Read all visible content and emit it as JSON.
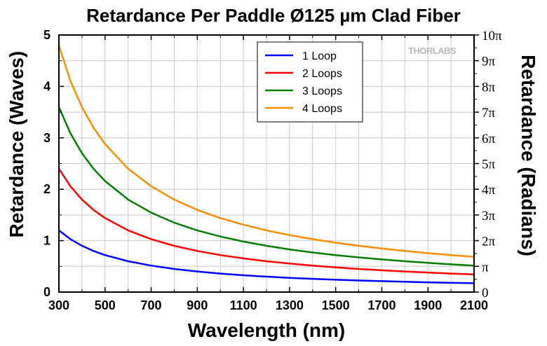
{
  "chart_data": {
    "type": "line",
    "title": "Retardance Per Paddle Ø125 µm Clad Fiber",
    "xlabel": "Wavelength (nm)",
    "ylabel": "Retardance (Waves)",
    "y2label": "Retardance (Radians)",
    "xlim": [
      300,
      2100
    ],
    "ylim": [
      0,
      5
    ],
    "x_ticks": [
      "300",
      "500",
      "700",
      "900",
      "1100",
      "1300",
      "1500",
      "1700",
      "1900",
      "2100"
    ],
    "y_ticks": [
      "0",
      "1",
      "2",
      "3",
      "4",
      "5"
    ],
    "y2_ticks": [
      "0",
      "π",
      "2π",
      "3π",
      "4π",
      "5π",
      "6π",
      "7π",
      "8π",
      "9π",
      "10π"
    ],
    "grid": true,
    "legend_position": "top-right",
    "x": [
      300,
      350,
      400,
      450,
      500,
      600,
      700,
      800,
      900,
      1000,
      1100,
      1200,
      1300,
      1400,
      1500,
      1600,
      1700,
      1800,
      1900,
      2000,
      2100
    ],
    "series": [
      {
        "name": "1 Loop",
        "color": "#0000ff",
        "values": [
          1.2,
          1.03,
          0.9,
          0.8,
          0.72,
          0.6,
          0.515,
          0.45,
          0.4,
          0.36,
          0.327,
          0.3,
          0.277,
          0.257,
          0.24,
          0.225,
          0.212,
          0.2,
          0.19,
          0.18,
          0.172
        ]
      },
      {
        "name": "2 Loops",
        "color": "#ff0000",
        "values": [
          2.4,
          2.06,
          1.8,
          1.6,
          1.44,
          1.2,
          1.03,
          0.9,
          0.8,
          0.72,
          0.655,
          0.6,
          0.554,
          0.514,
          0.48,
          0.45,
          0.424,
          0.4,
          0.38,
          0.36,
          0.343
        ]
      },
      {
        "name": "3 Loops",
        "color": "#008000",
        "values": [
          3.6,
          3.09,
          2.7,
          2.4,
          2.16,
          1.8,
          1.545,
          1.35,
          1.2,
          1.08,
          0.982,
          0.9,
          0.83,
          0.77,
          0.72,
          0.675,
          0.635,
          0.6,
          0.568,
          0.54,
          0.514
        ]
      },
      {
        "name": "4 Loops",
        "color": "#ff8c00",
        "values": [
          4.8,
          4.11,
          3.6,
          3.2,
          2.88,
          2.4,
          2.06,
          1.8,
          1.6,
          1.44,
          1.31,
          1.2,
          1.108,
          1.03,
          0.96,
          0.9,
          0.847,
          0.8,
          0.758,
          0.72,
          0.686
        ]
      }
    ],
    "watermark": "THORLABS"
  }
}
